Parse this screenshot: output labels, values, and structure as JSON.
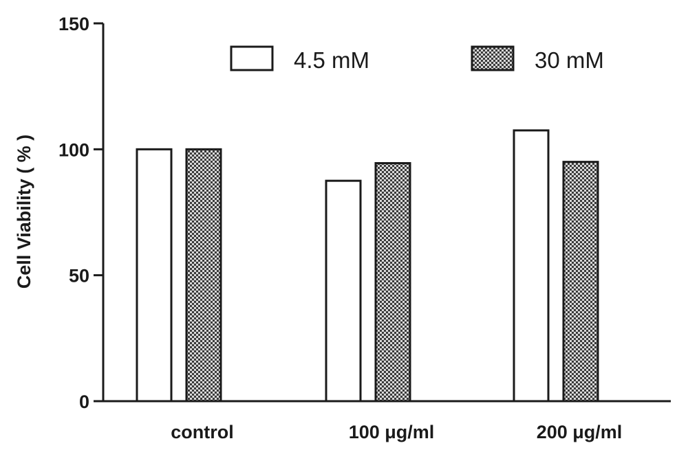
{
  "chart_data": {
    "type": "bar",
    "categories": [
      "control",
      "100 μg/ml",
      "200 μg/ml"
    ],
    "series": [
      {
        "name": "4.5 mM",
        "values": [
          100,
          87.5,
          107.5
        ],
        "fill": "white"
      },
      {
        "name": "30 mM",
        "values": [
          100,
          94.5,
          95
        ],
        "fill": "checkered"
      }
    ],
    "title": "",
    "xlabel": "",
    "ylabel": "Cell Viability ( % )",
    "ylim": [
      0,
      150
    ],
    "yticks": [
      0,
      50,
      100,
      150
    ],
    "ytick_labels": [
      "0",
      "50",
      "100",
      "150"
    ],
    "grid": false,
    "legend_position": "top-right"
  },
  "colors": {
    "axis": "#1a1a1a",
    "bar_outline": "#1a1a1a",
    "series_1_fill": "#ffffff",
    "series_2_pattern_dark": "#3a3a3a",
    "series_2_pattern_light": "#d8d8d8"
  }
}
